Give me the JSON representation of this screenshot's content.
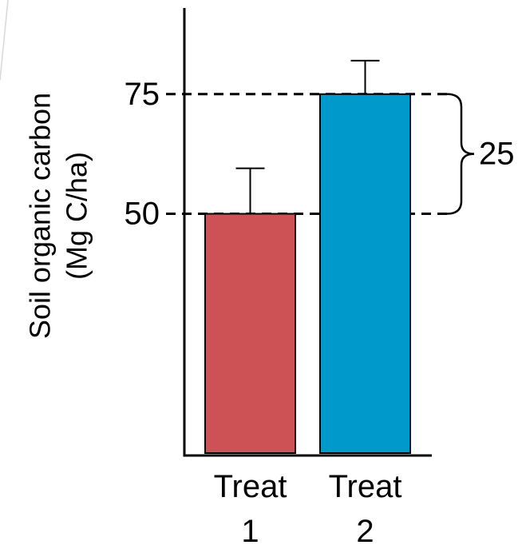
{
  "chart_data": {
    "type": "bar",
    "categories": [
      "Treat 1",
      "Treat 2"
    ],
    "category_lines": [
      [
        "Treat",
        "1"
      ],
      [
        "Treat",
        "2"
      ]
    ],
    "values": [
      50,
      75
    ],
    "error_upper": [
      59.5,
      82
    ],
    "colors": [
      "#cd5256",
      "#0099cc"
    ],
    "ylabel_lines": [
      "Soil organic carbon",
      "(Mg C/ha)"
    ],
    "ytick_values": [
      50,
      75
    ],
    "ytick_labels": [
      "50",
      "75"
    ],
    "ylim": [
      0,
      93
    ],
    "reference_lines": [
      50,
      75
    ],
    "difference_label": "25",
    "grid": false
  }
}
